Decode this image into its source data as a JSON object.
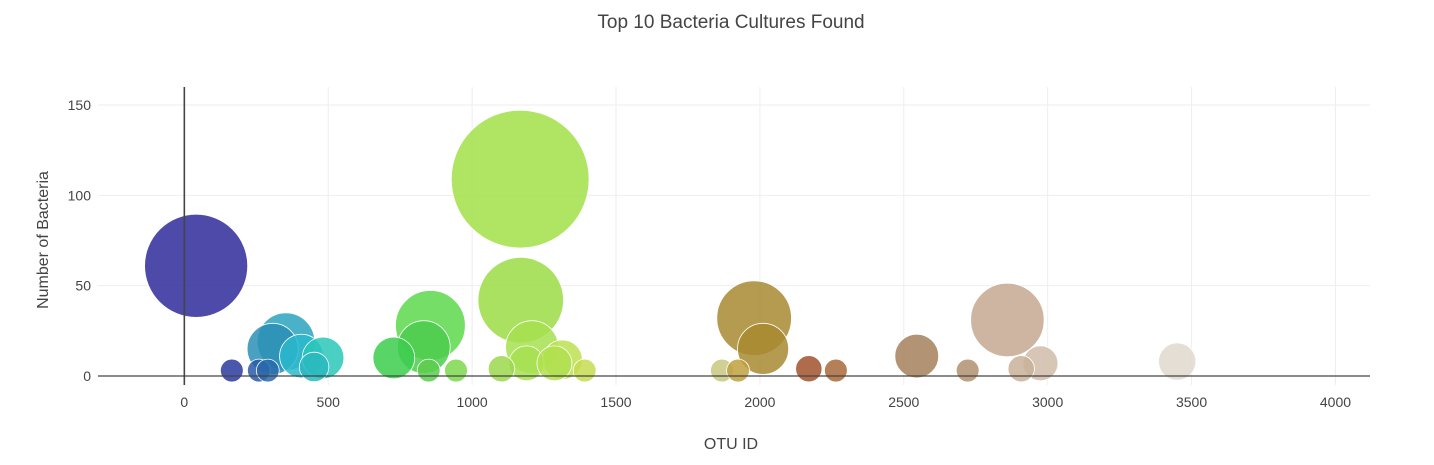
{
  "chart_data": {
    "type": "scatter",
    "title": "Top 10 Bacteria Cultures Found",
    "xlabel": "OTU ID",
    "ylabel": "Number of Bacteria",
    "xlim": [
      -300,
      4120
    ],
    "ylim": [
      -5,
      160
    ],
    "xticks": [
      "0",
      "500",
      "1000",
      "1500",
      "2000",
      "2500",
      "3000",
      "3500",
      "4000"
    ],
    "yticks": [
      "0",
      "50",
      "100",
      "150"
    ],
    "grid": true,
    "legend": "none",
    "series": [
      {
        "points": [
          {
            "x": 41,
            "y": 61,
            "color": "#2e2a9a"
          },
          {
            "x": 165,
            "y": 3,
            "color": "#2a3a9e"
          },
          {
            "x": 259,
            "y": 3,
            "color": "#2a5aa8"
          },
          {
            "x": 290,
            "y": 3,
            "color": "#2a6aac"
          },
          {
            "x": 307,
            "y": 15,
            "color": "#2a8fb5"
          },
          {
            "x": 353,
            "y": 19,
            "color": "#2aa3c0"
          },
          {
            "x": 407,
            "y": 11,
            "color": "#2ab8cc"
          },
          {
            "x": 451,
            "y": 5,
            "color": "#2ab8c0"
          },
          {
            "x": 482,
            "y": 10,
            "color": "#2ac7b8"
          },
          {
            "x": 728,
            "y": 10,
            "color": "#3ccc4c"
          },
          {
            "x": 832,
            "y": 16,
            "color": "#4ccc4c"
          },
          {
            "x": 849,
            "y": 3,
            "color": "#5ccc4c"
          },
          {
            "x": 855,
            "y": 28,
            "color": "#5cd84c"
          },
          {
            "x": 944,
            "y": 3,
            "color": "#7cd84c"
          },
          {
            "x": 1102,
            "y": 4,
            "color": "#9cd84c"
          },
          {
            "x": 1167,
            "y": 109,
            "color": "#a2e048"
          },
          {
            "x": 1169,
            "y": 42,
            "color": "#9cdc44"
          },
          {
            "x": 1208,
            "y": 16,
            "color": "#a6e050"
          },
          {
            "x": 1189,
            "y": 7,
            "color": "#a6e050"
          },
          {
            "x": 1286,
            "y": 7,
            "color": "#b0e050"
          },
          {
            "x": 1314,
            "y": 9,
            "color": "#bce050"
          },
          {
            "x": 1391,
            "y": 3,
            "color": "#c6dc50"
          },
          {
            "x": 1868,
            "y": 3,
            "color": "#c8c880"
          },
          {
            "x": 1924,
            "y": 3,
            "color": "#c0a040"
          },
          {
            "x": 1980,
            "y": 32,
            "color": "#a88a30"
          },
          {
            "x": 2011,
            "y": 15,
            "color": "#a88a30"
          },
          {
            "x": 2170,
            "y": 4,
            "color": "#a0522d"
          },
          {
            "x": 2264,
            "y": 3,
            "color": "#a86a3a"
          },
          {
            "x": 2545,
            "y": 11,
            "color": "#a4805c"
          },
          {
            "x": 2722,
            "y": 3,
            "color": "#b09070"
          },
          {
            "x": 2860,
            "y": 31,
            "color": "#c4a890"
          },
          {
            "x": 2908,
            "y": 4,
            "color": "#c8b098"
          },
          {
            "x": 2975,
            "y": 7,
            "color": "#d0bca8"
          },
          {
            "x": 3450,
            "y": 8,
            "color": "#e0d8cc"
          }
        ]
      }
    ]
  }
}
